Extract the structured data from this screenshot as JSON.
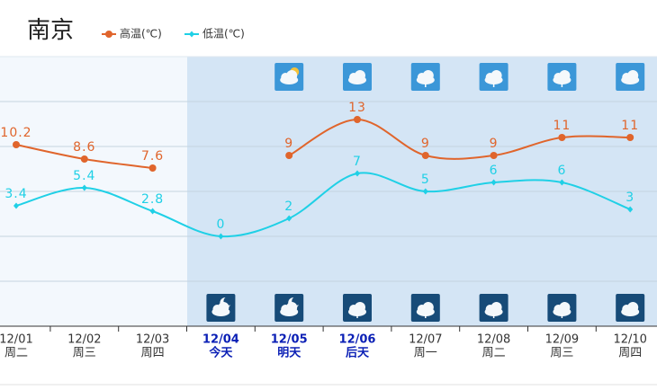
{
  "chart_data": {
    "type": "line",
    "title": "南京",
    "categories": [
      "12/01",
      "12/02",
      "12/03",
      "12/04",
      "12/05",
      "12/06",
      "12/07",
      "12/08",
      "12/09",
      "12/10"
    ],
    "weekdays": [
      "周二",
      "周三",
      "周四",
      "今天",
      "明天",
      "后天",
      "周一",
      "周二",
      "周三",
      "周四"
    ],
    "series": [
      {
        "name": "高温(℃)",
        "color": "#e0652c",
        "values": [
          10.2,
          8.6,
          7.6,
          null,
          9,
          13,
          9,
          9,
          11,
          11
        ]
      },
      {
        "name": "低温(℃)",
        "color": "#1fd0e6",
        "values": [
          3.4,
          5.4,
          2.8,
          0,
          2,
          7,
          5,
          6,
          6,
          3
        ]
      }
    ],
    "ylim": [
      -10,
      20
    ],
    "yticks": [
      -5,
      0,
      5,
      10,
      15
    ],
    "grid": true
  }
}
